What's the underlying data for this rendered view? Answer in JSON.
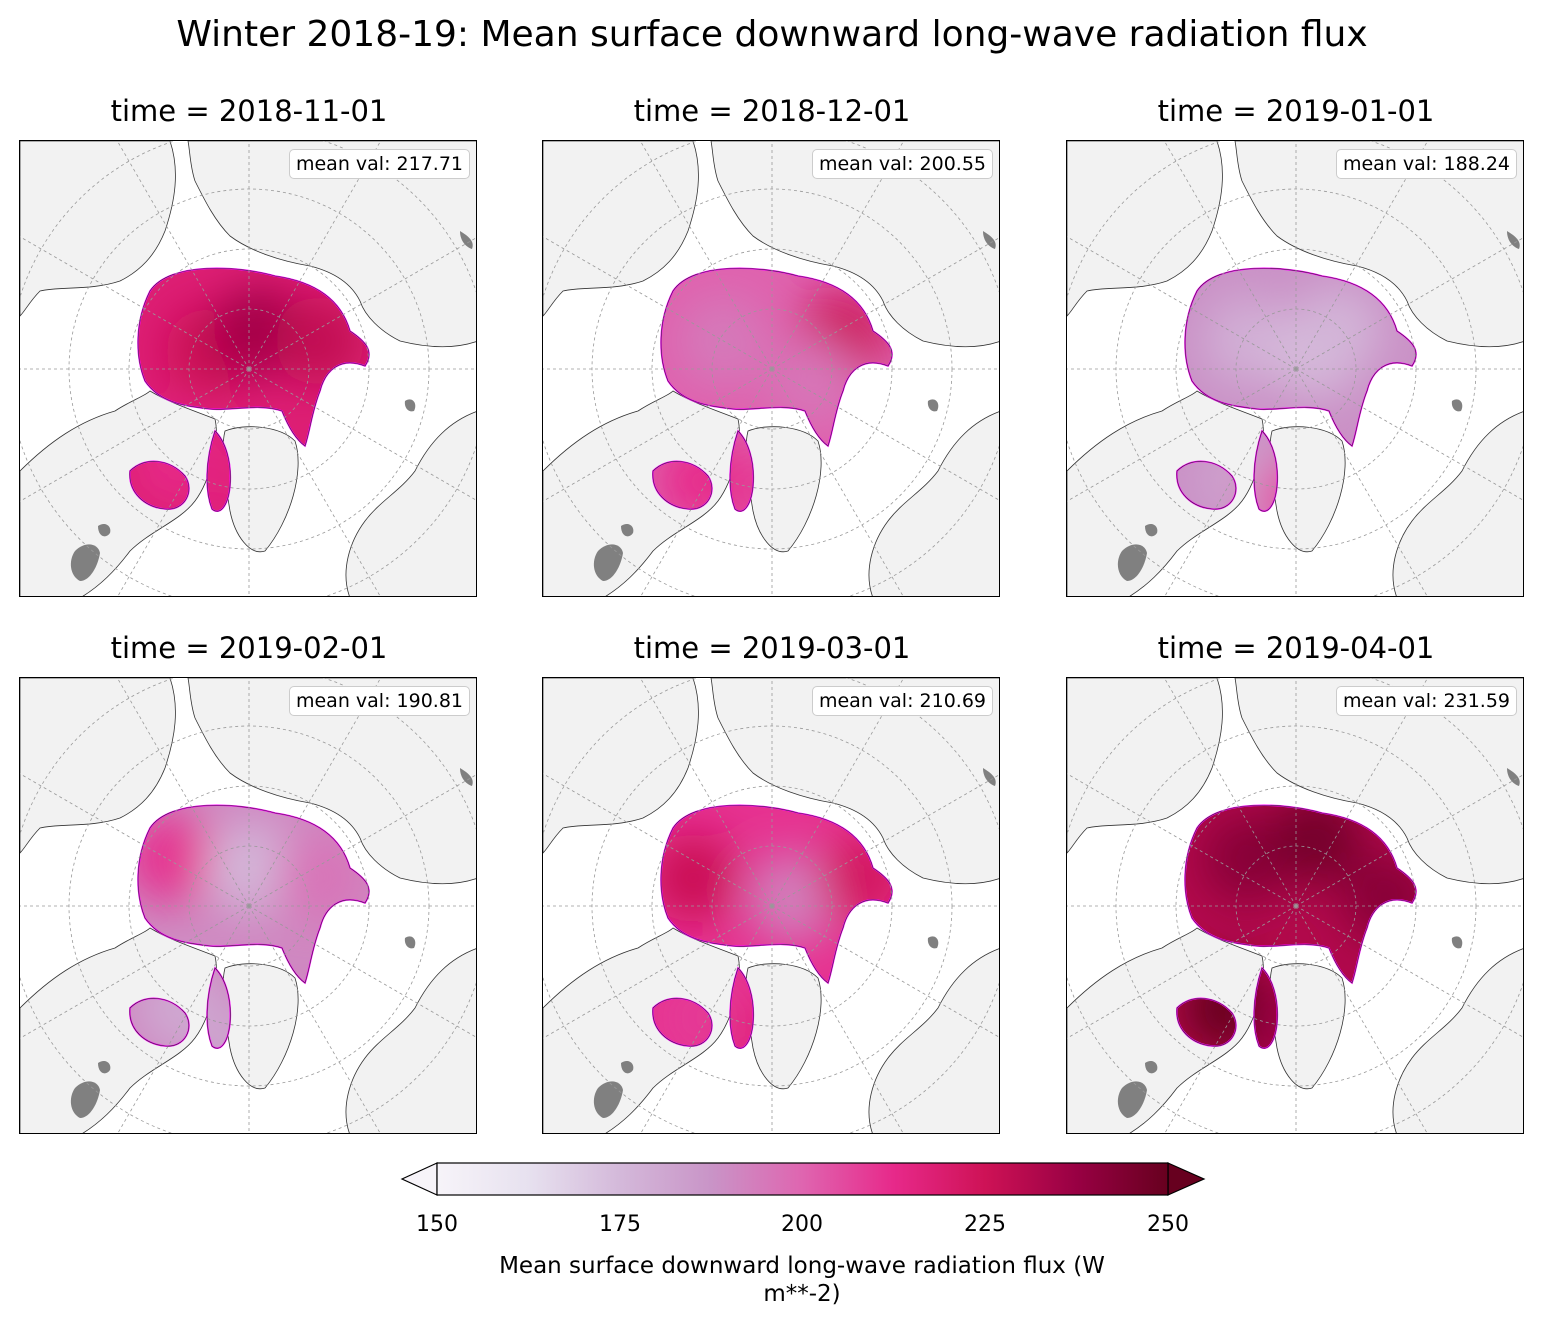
{
  "title": "Winter 2018-19: Mean surface downward long-wave radiation flux",
  "panels": [
    {
      "title": "time = 2018-11-01",
      "mean_label": "mean val: 217.71",
      "mean_value": 217.71
    },
    {
      "title": "time = 2018-12-01",
      "mean_label": "mean val: 200.55",
      "mean_value": 200.55
    },
    {
      "title": "time = 2019-01-01",
      "mean_label": "mean val: 188.24",
      "mean_value": 188.24
    },
    {
      "title": "time = 2019-02-01",
      "mean_label": "mean val: 190.81",
      "mean_value": 190.81
    },
    {
      "title": "time = 2019-03-01",
      "mean_label": "mean val: 210.69",
      "mean_value": 210.69
    },
    {
      "title": "time = 2019-04-01",
      "mean_label": "mean val: 231.59",
      "mean_value": 231.59
    }
  ],
  "colorbar": {
    "min": 150,
    "max": 250,
    "extend": "both",
    "ticks": [
      "150",
      "175",
      "200",
      "225",
      "250"
    ],
    "label_line1": "Mean surface downward long-wave radiation flux (W",
    "label_line2": "m**-2)",
    "colors": [
      "#f7f4f9",
      "#e7e1ef",
      "#d4b9da",
      "#c994c7",
      "#df65b0",
      "#e7298a",
      "#ce1256",
      "#980043",
      "#67001f"
    ]
  },
  "map_colors": {
    "ocean": "#ffffff",
    "land": "#f2f2f2",
    "lakes": "#808080",
    "edge": "#ff00ff"
  }
}
